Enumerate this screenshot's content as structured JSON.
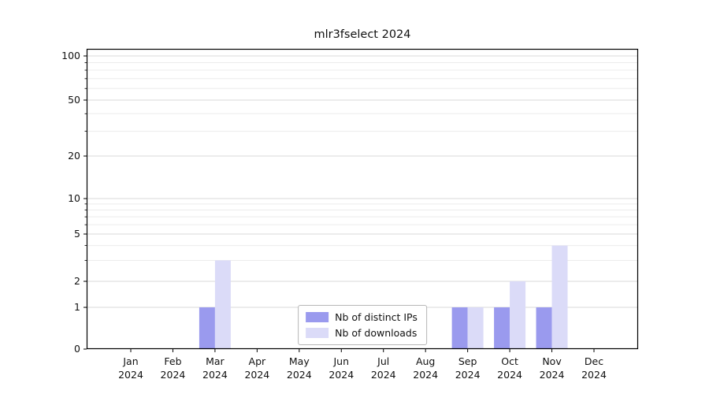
{
  "title": "mlr3fselect 2024",
  "colors": {
    "grid_major": "#d9d9d9",
    "grid_minor": "#ececec",
    "axis": "#000000",
    "background": "#ffffff"
  },
  "legend": {
    "items": [
      {
        "label": "Nb of distinct IPs"
      },
      {
        "label": "Nb of downloads"
      }
    ]
  },
  "chart_data": {
    "type": "bar",
    "title": "mlr3fselect 2024",
    "xlabel": "",
    "ylabel": "",
    "categories": [
      "Jan",
      "Feb",
      "Mar",
      "Apr",
      "May",
      "Jun",
      "Jul",
      "Aug",
      "Sep",
      "Oct",
      "Nov",
      "Dec"
    ],
    "category_year": "2024",
    "series": [
      {
        "name": "Nb of distinct IPs",
        "color": "#9a9aee",
        "values": [
          0,
          0,
          1,
          0,
          0,
          0,
          0,
          0,
          1,
          1,
          1,
          0
        ]
      },
      {
        "name": "Nb of downloads",
        "color": "#dbdbf8",
        "values": [
          0,
          0,
          3,
          0,
          0,
          0,
          0,
          0,
          1,
          2,
          4,
          0
        ]
      }
    ],
    "y_scale": "log",
    "y_ticks": [
      0,
      1,
      2,
      5,
      10,
      20,
      50,
      100
    ],
    "y_minor_ticks": [
      3,
      4,
      6,
      7,
      8,
      9,
      30,
      40,
      60,
      70,
      80,
      90
    ],
    "ylim": [
      0,
      110
    ],
    "grid": true,
    "legend_position": "lower center"
  }
}
